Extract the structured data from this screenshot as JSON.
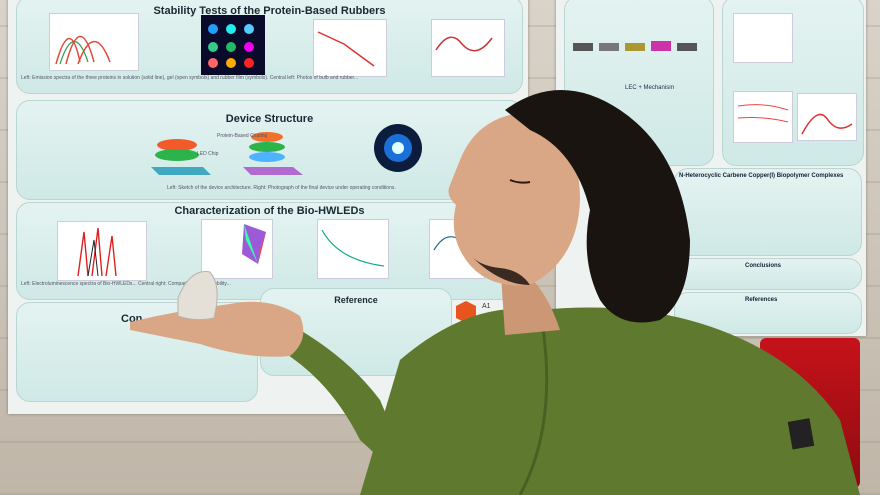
{
  "poster_left": {
    "section1_title": "Stability Tests of the Protein-Based Rubbers",
    "section2_title": "Device Structure",
    "section3_title": "Characterization of the Bio-HWLEDs",
    "section4_title": "Reference",
    "device_labels": [
      "Protein-Based Coating",
      "LED Chip"
    ],
    "section1_caption": "Left: Emission spectra of the three proteins in solution (solid line), gel (open symbols) and rubber film (symbols). Central left: Photos of bulb and rubber...",
    "section2_caption": "Left: Sketch of the device architecture. Right: Photograph of the final device under operating conditions.",
    "section3_caption": "Left: Electroluminescence spectra of Bio-HWLEDs... Central right: Comparison of the stability...",
    "conclusions_label": "Con",
    "badge_label": "A1"
  },
  "poster_right": {
    "section_title": "N-Heterocyclic Carbene Copper(I) Biopolymer Complexes",
    "conclusions_title": "Conclusions",
    "references_title": "References",
    "sub_title": "LEC + Mechanism"
  },
  "colors": {
    "wall": "#cfc8bd",
    "poster_bg": "#eef2f0",
    "panel": "#cfe9e6",
    "sweater": "#5f7a2e",
    "hair": "#1a1410",
    "skin": "#d9a786",
    "chair": "#c6121a"
  }
}
